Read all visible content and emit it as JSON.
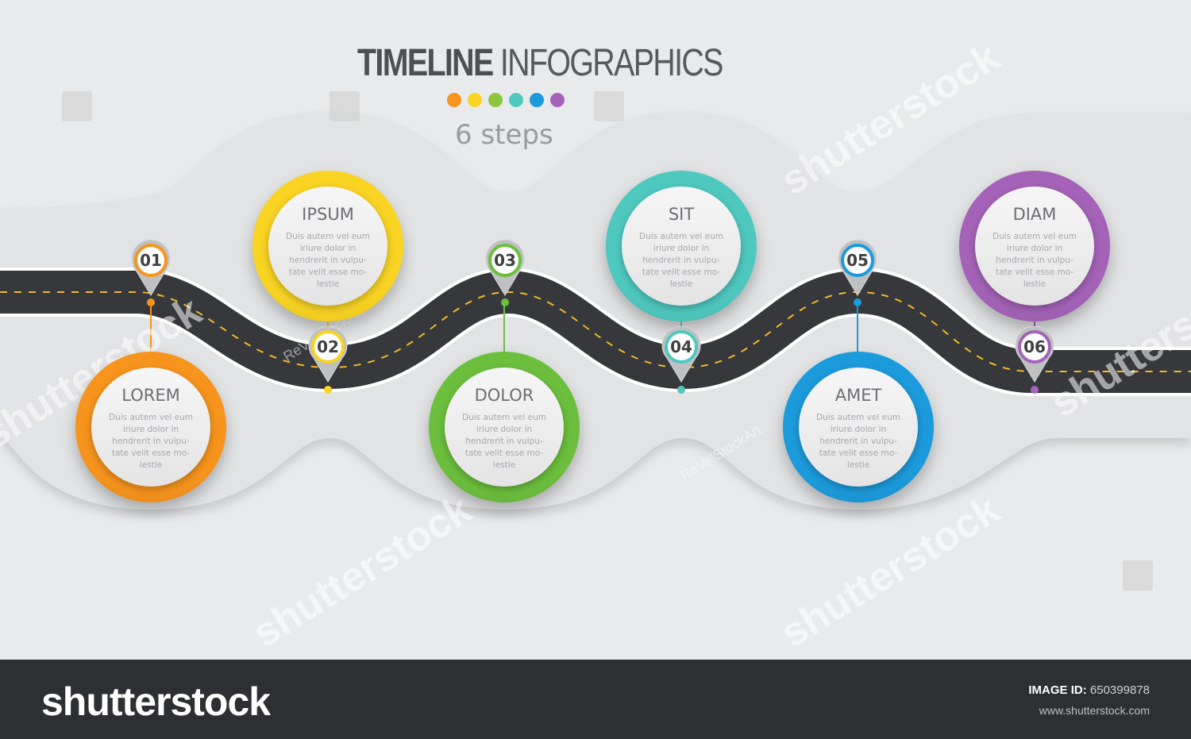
{
  "title": {
    "bold": "TIMELINE",
    "light": "INFOGRAPHICS"
  },
  "subtitle": "6 steps",
  "palette": [
    "#f7941d",
    "#f9d423",
    "#8cc63f",
    "#4fc9c0",
    "#1c9bdc",
    "#a463b8"
  ],
  "steps": [
    {
      "num": "01",
      "title": "LOREM",
      "desc": "Duis autem vel eum iriure dolor in hendrerit in vulpu-tate velit esse mo-lestie",
      "color": "#f7941d"
    },
    {
      "num": "02",
      "title": "IPSUM",
      "desc": "Duis autem vel eum iriure dolor in hendrerit in vulpu-tate velit esse mo-lestie",
      "color": "#f9d423"
    },
    {
      "num": "03",
      "title": "DOLOR",
      "desc": "Duis autem vel eum iriure dolor in hendrerit in vulpu-tate velit esse mo-lestie",
      "color": "#6cbf3d"
    },
    {
      "num": "04",
      "title": "SIT",
      "desc": "Duis autem vel eum iriure dolor in hendrerit in vulpu-tate velit esse mo-lestie",
      "color": "#4fc9c0"
    },
    {
      "num": "05",
      "title": "AMET",
      "desc": "Duis autem vel eum iriure dolor in hendrerit in vulpu-tate velit esse mo-lestie",
      "color": "#1c9bdc"
    },
    {
      "num": "06",
      "title": "DIAM",
      "desc": "Duis autem vel eum iriure dolor in hendrerit in vulpu-tate velit esse mo-lestie",
      "color": "#a463b8"
    }
  ],
  "watermark": {
    "text": "shutterstock",
    "artist": "ReVelStockArt"
  },
  "footer": {
    "brand": "shutterstock",
    "image_id_label": "IMAGE ID:",
    "image_id": "650399878",
    "site": "www.shutterstock.com"
  }
}
